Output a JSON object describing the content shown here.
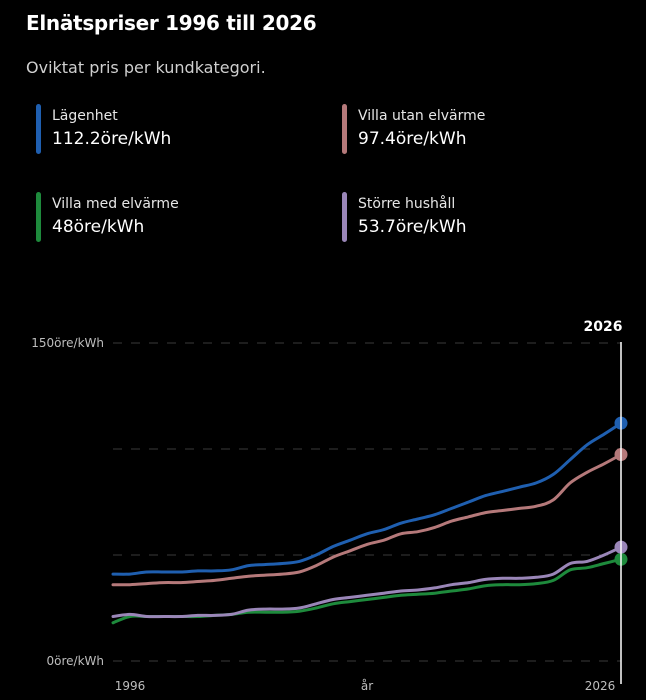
{
  "header": {
    "title": "Elnätspriser 1996 till 2026",
    "subtitle": "Oviktat pris per kundkategori."
  },
  "legend": [
    {
      "name": "Lägenhet",
      "value": "112.2öre/kWh",
      "color": "#1f5fb0"
    },
    {
      "name": "Villa utan elvärme",
      "value": "97.4öre/kWh",
      "color": "#b5797a"
    },
    {
      "name": "Villa med elvärme",
      "value": "48öre/kWh",
      "color": "#1e8a3c"
    },
    {
      "name": "Större hushåll",
      "value": "53.7öre/kWh",
      "color": "#9a86b8"
    }
  ],
  "chart_data": {
    "type": "line",
    "x_range": [
      1996,
      2026
    ],
    "ylim": [
      0,
      150
    ],
    "y_ticks": [
      {
        "value": 150,
        "label": "150öre/kWh"
      },
      {
        "value": 0,
        "label": "0öre/kWh"
      }
    ],
    "x_labels": [
      "1996",
      "år",
      "2026"
    ],
    "marker_label": "2026",
    "marker_year": 2026,
    "grid": true,
    "series": [
      {
        "name": "Lägenhet",
        "color": "#1f5fb0",
        "points": [
          [
            1996,
            41
          ],
          [
            1997,
            41
          ],
          [
            1998,
            42
          ],
          [
            1999,
            42
          ],
          [
            2000,
            42
          ],
          [
            2001,
            42.5
          ],
          [
            2002,
            42.5
          ],
          [
            2003,
            43
          ],
          [
            2004,
            45
          ],
          [
            2005,
            45.5
          ],
          [
            2006,
            46
          ],
          [
            2007,
            47
          ],
          [
            2008,
            50
          ],
          [
            2009,
            54
          ],
          [
            2010,
            57
          ],
          [
            2011,
            60
          ],
          [
            2012,
            62
          ],
          [
            2013,
            65
          ],
          [
            2014,
            67
          ],
          [
            2015,
            69
          ],
          [
            2016,
            72
          ],
          [
            2017,
            75
          ],
          [
            2018,
            78
          ],
          [
            2019,
            80
          ],
          [
            2020,
            82
          ],
          [
            2021,
            84
          ],
          [
            2022,
            88
          ],
          [
            2023,
            95
          ],
          [
            2024,
            102
          ],
          [
            2025,
            107
          ],
          [
            2026,
            112.2
          ]
        ]
      },
      {
        "name": "Villa utan elvärme",
        "color": "#b5797a",
        "points": [
          [
            1996,
            36
          ],
          [
            1997,
            36
          ],
          [
            1998,
            36.5
          ],
          [
            1999,
            37
          ],
          [
            2000,
            37
          ],
          [
            2001,
            37.5
          ],
          [
            2002,
            38
          ],
          [
            2003,
            39
          ],
          [
            2004,
            40
          ],
          [
            2005,
            40.5
          ],
          [
            2006,
            41
          ],
          [
            2007,
            42
          ],
          [
            2008,
            45
          ],
          [
            2009,
            49
          ],
          [
            2010,
            52
          ],
          [
            2011,
            55
          ],
          [
            2012,
            57
          ],
          [
            2013,
            60
          ],
          [
            2014,
            61
          ],
          [
            2015,
            63
          ],
          [
            2016,
            66
          ],
          [
            2017,
            68
          ],
          [
            2018,
            70
          ],
          [
            2019,
            71
          ],
          [
            2020,
            72
          ],
          [
            2021,
            73
          ],
          [
            2022,
            76
          ],
          [
            2023,
            84
          ],
          [
            2024,
            89
          ],
          [
            2025,
            93
          ],
          [
            2026,
            97.4
          ]
        ]
      },
      {
        "name": "Villa med elvärme",
        "color": "#1e8a3c",
        "points": [
          [
            1996,
            18
          ],
          [
            1997,
            21
          ],
          [
            1998,
            21
          ],
          [
            1999,
            21
          ],
          [
            2000,
            21
          ],
          [
            2001,
            21
          ],
          [
            2002,
            21.5
          ],
          [
            2003,
            22
          ],
          [
            2004,
            23
          ],
          [
            2005,
            23
          ],
          [
            2006,
            23
          ],
          [
            2007,
            23.5
          ],
          [
            2008,
            25
          ],
          [
            2009,
            27
          ],
          [
            2010,
            28
          ],
          [
            2011,
            29
          ],
          [
            2012,
            30
          ],
          [
            2013,
            31
          ],
          [
            2014,
            31.5
          ],
          [
            2015,
            32
          ],
          [
            2016,
            33
          ],
          [
            2017,
            34
          ],
          [
            2018,
            35.5
          ],
          [
            2019,
            36
          ],
          [
            2020,
            36
          ],
          [
            2021,
            36.5
          ],
          [
            2022,
            38
          ],
          [
            2023,
            43
          ],
          [
            2024,
            44
          ],
          [
            2025,
            46
          ],
          [
            2026,
            48
          ]
        ]
      },
      {
        "name": "Större hushåll",
        "color": "#9a86b8",
        "points": [
          [
            1996,
            21
          ],
          [
            1997,
            22
          ],
          [
            1998,
            21
          ],
          [
            1999,
            21
          ],
          [
            2000,
            21
          ],
          [
            2001,
            21.5
          ],
          [
            2002,
            21.5
          ],
          [
            2003,
            22
          ],
          [
            2004,
            24
          ],
          [
            2005,
            24.5
          ],
          [
            2006,
            24.5
          ],
          [
            2007,
            25
          ],
          [
            2008,
            27
          ],
          [
            2009,
            29
          ],
          [
            2010,
            30
          ],
          [
            2011,
            31
          ],
          [
            2012,
            32
          ],
          [
            2013,
            33
          ],
          [
            2014,
            33.5
          ],
          [
            2015,
            34.5
          ],
          [
            2016,
            36
          ],
          [
            2017,
            37
          ],
          [
            2018,
            38.5
          ],
          [
            2019,
            39
          ],
          [
            2020,
            39
          ],
          [
            2021,
            39.5
          ],
          [
            2022,
            41
          ],
          [
            2023,
            46
          ],
          [
            2024,
            47
          ],
          [
            2025,
            50
          ],
          [
            2026,
            53.7
          ]
        ]
      }
    ]
  }
}
